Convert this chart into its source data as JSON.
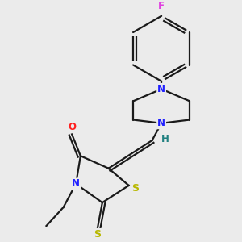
{
  "background_color": "#ebebeb",
  "bond_color": "#1a1a1a",
  "atom_colors": {
    "N": "#2020ff",
    "O": "#ff2020",
    "S": "#b8b800",
    "F": "#e040e0",
    "H": "#208080",
    "C": "#1a1a1a"
  },
  "figsize": [
    3.0,
    3.0
  ],
  "dpi": 100,
  "lw": 1.6
}
